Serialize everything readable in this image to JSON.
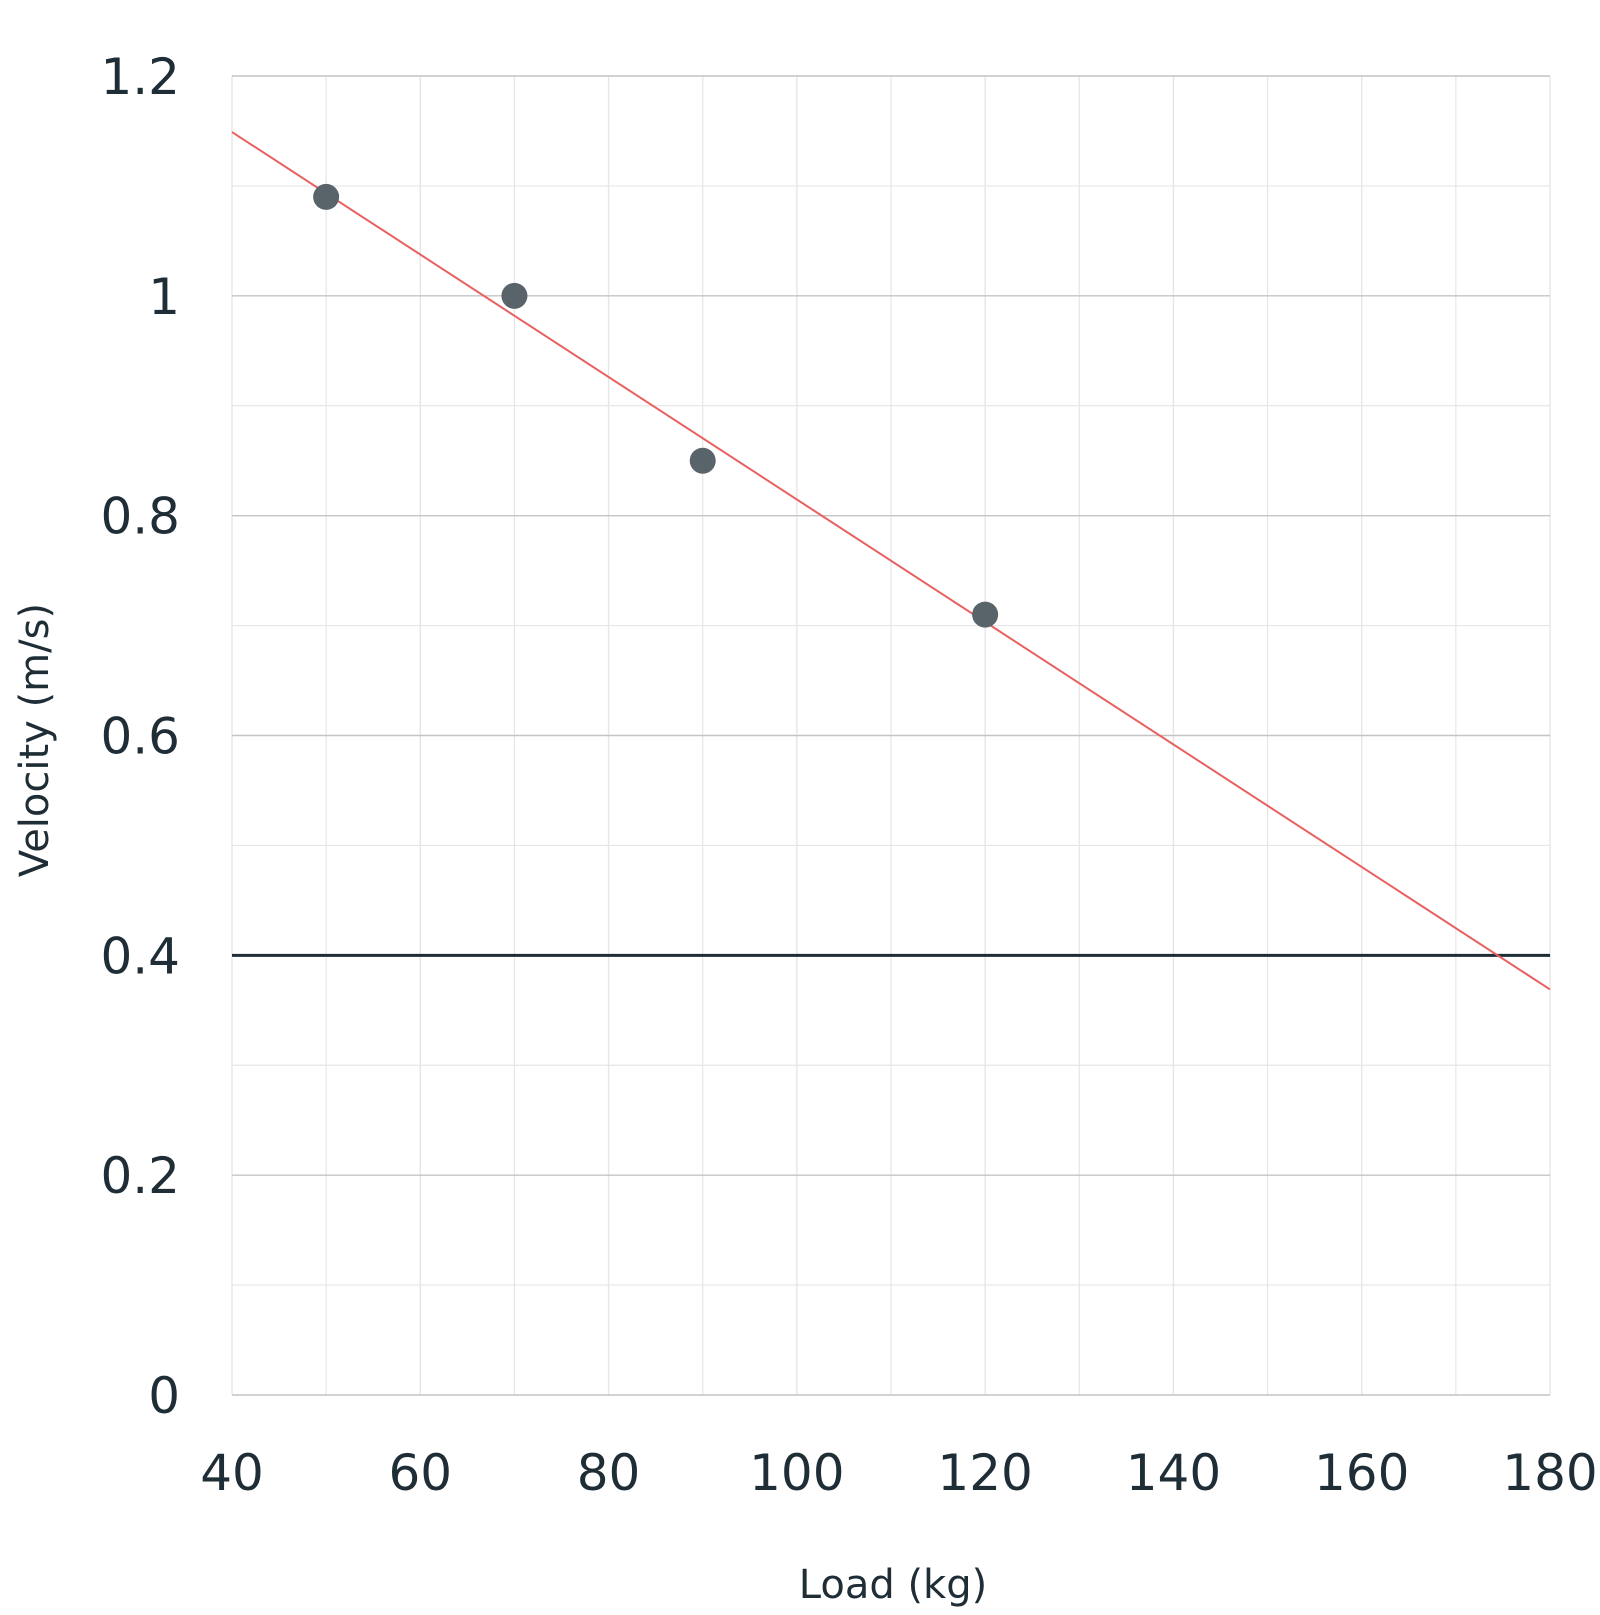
{
  "chart_data": {
    "type": "scatter",
    "title": "",
    "xlabel": "Load (kg)",
    "ylabel": "Velocity (m/s)",
    "xlim": [
      40,
      180
    ],
    "ylim": [
      0,
      1.2
    ],
    "x_ticks": [
      40,
      60,
      80,
      100,
      120,
      140,
      160,
      180
    ],
    "y_ticks": [
      0,
      0.2,
      0.4,
      0.6,
      0.8,
      1,
      1.2
    ],
    "x_tick_labels": [
      "40",
      "60",
      "80",
      "100",
      "120",
      "140",
      "160",
      "180"
    ],
    "y_tick_labels": [
      "0",
      "0.2",
      "0.4",
      "0.6",
      "0.8",
      "1",
      "1.2"
    ],
    "x_minor_step": 10,
    "y_minor_step": 0.1,
    "grid": true,
    "legend": "none",
    "points": [
      {
        "x": 50,
        "y": 1.09
      },
      {
        "x": 70,
        "y": 1.0
      },
      {
        "x": 90,
        "y": 0.85
      },
      {
        "x": 120,
        "y": 0.71
      }
    ],
    "trendline": {
      "type": "linear",
      "x": [
        40,
        180
      ],
      "y": [
        1.149,
        0.369
      ]
    },
    "reference_line": {
      "type": "horizontal",
      "y": 0.4
    },
    "colors": {
      "point": "#59636a",
      "trendline": "#e8605f",
      "reference_line": "#1f2d36",
      "major_grid": "#c4c4c4",
      "minor_grid": "#e6e6e6",
      "text": "#1f2d36"
    }
  }
}
